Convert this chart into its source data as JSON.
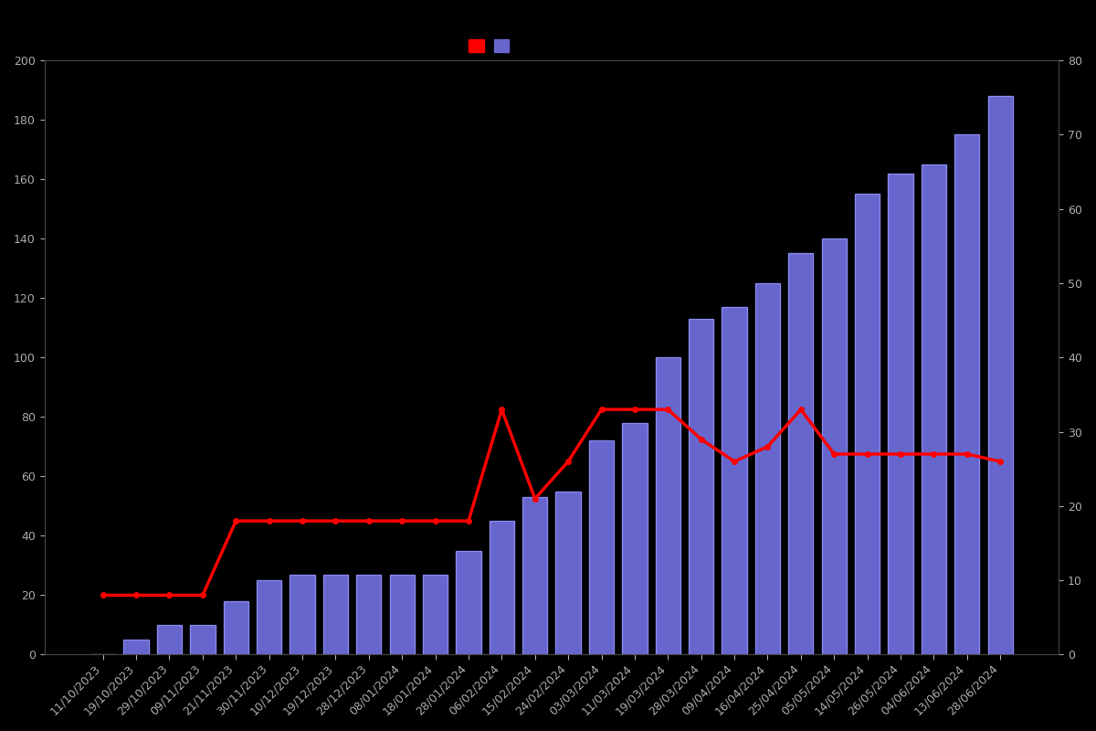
{
  "dates": [
    "11/10/2023",
    "19/10/2023",
    "29/10/2023",
    "09/11/2023",
    "21/11/2023",
    "30/11/2023",
    "10/12/2023",
    "19/12/2023",
    "28/12/2023",
    "08/01/2024",
    "18/01/2024",
    "28/01/2024",
    "06/02/2024",
    "15/02/2024",
    "24/02/2024",
    "03/03/2024",
    "11/03/2024",
    "19/03/2024",
    "28/03/2024",
    "09/04/2024",
    "16/04/2024",
    "25/04/2024",
    "05/05/2024",
    "14/05/2024",
    "26/05/2024",
    "04/06/2024",
    "13/06/2024",
    "28/06/2024"
  ],
  "bar_values": [
    0,
    5,
    10,
    10,
    18,
    25,
    27,
    27,
    27,
    27,
    27,
    35,
    45,
    53,
    55,
    72,
    78,
    100,
    113,
    117,
    125,
    135,
    140,
    155,
    162,
    165,
    175,
    188
  ],
  "line_values_right": [
    8,
    8,
    8,
    8,
    18,
    18,
    18,
    18,
    18,
    18,
    18,
    18,
    33,
    21,
    26,
    33,
    33,
    33,
    29,
    26,
    28,
    33,
    27,
    27,
    27,
    27,
    27,
    26
  ],
  "bar_color": "#6666cc",
  "bar_edgecolor": "#8888ee",
  "line_color": "#ff0000",
  "line_marker": "o",
  "line_markersize": 4,
  "line_linewidth": 2.5,
  "background_color": "#000000",
  "text_color": "#aaaaaa",
  "left_ylim": [
    0,
    200
  ],
  "right_ylim": [
    0,
    80
  ],
  "left_yticks": [
    0,
    20,
    40,
    60,
    80,
    100,
    120,
    140,
    160,
    180,
    200
  ],
  "right_yticks": [
    0,
    10,
    20,
    30,
    40,
    50,
    60,
    70,
    80
  ],
  "font_size": 9
}
